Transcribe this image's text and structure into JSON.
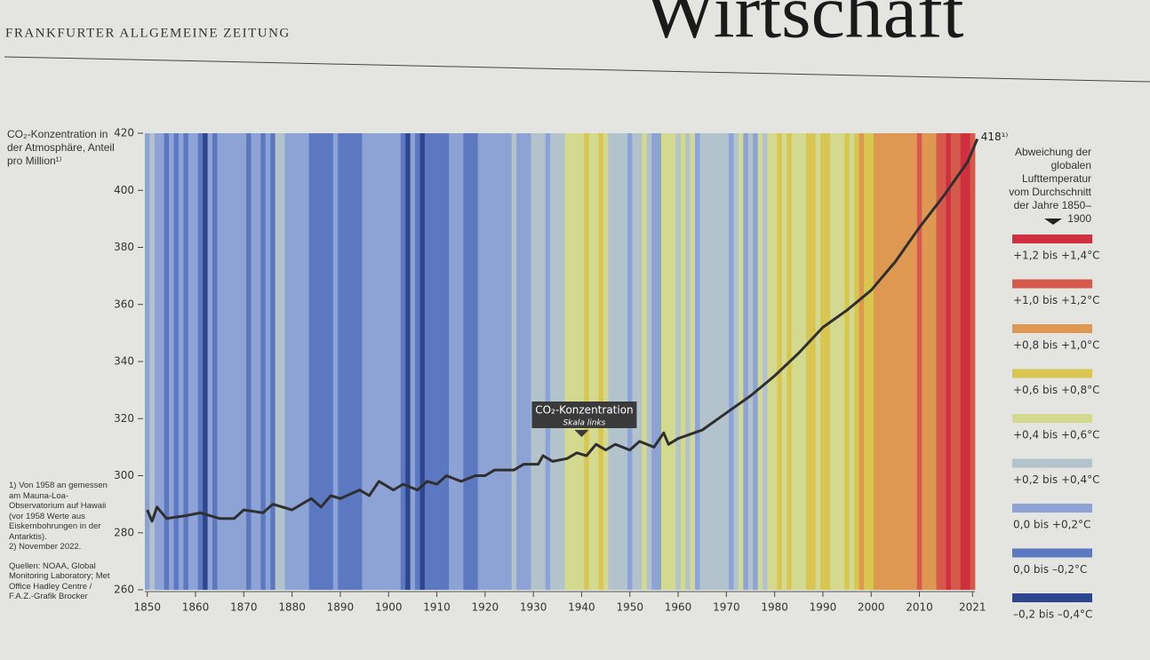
{
  "masthead": {
    "paper": "FRANKFURTER ALLGEMEINE ZEITUNG",
    "section": "Wirtschaft"
  },
  "chart_data": {
    "type": "line",
    "ylabel": "CO₂-Konzentration in der Atmosphäre, Anteil pro Million¹⁾",
    "xlim": [
      1849.5,
      2021.5
    ],
    "ylim": [
      260,
      420
    ],
    "yticks": [
      260,
      280,
      300,
      320,
      340,
      360,
      380,
      400,
      420
    ],
    "xticks": [
      1850,
      1860,
      1870,
      1880,
      1890,
      1900,
      1910,
      1920,
      1930,
      1940,
      1950,
      1960,
      1970,
      1980,
      1990,
      2000,
      2010,
      2021
    ],
    "annotation": {
      "text": "CO₂-Konzentration",
      "subtext": "Skala links",
      "x": 1940
    },
    "x": [
      1850,
      1851,
      1852,
      1854,
      1858,
      1861,
      1865,
      1868,
      1870,
      1874,
      1876,
      1880,
      1884,
      1886,
      1888,
      1890,
      1894,
      1896,
      1898,
      1901,
      1903,
      1906,
      1908,
      1910,
      1912,
      1915,
      1918,
      1920,
      1922,
      1926,
      1928,
      1931,
      1932,
      1934,
      1937,
      1939,
      1941,
      1943,
      1945,
      1947,
      1950,
      1952,
      1955,
      1957,
      1958,
      1960,
      1965,
      1970,
      1975,
      1980,
      1985,
      1990,
      1995,
      2000,
      2005,
      2010,
      2015,
      2020,
      2022
    ],
    "series": [
      {
        "name": "CO₂-Konzentration",
        "color": "#2f2f2f",
        "values": [
          288,
          284,
          289,
          285,
          286,
          287,
          285,
          285,
          288,
          287,
          290,
          288,
          292,
          289,
          293,
          292,
          295,
          293,
          298,
          295,
          297,
          295,
          298,
          297,
          300,
          298,
          300,
          300,
          302,
          302,
          304,
          304,
          307,
          305,
          306,
          308,
          307,
          311,
          309,
          311,
          309,
          312,
          310,
          315,
          311,
          313,
          316,
          322,
          328,
          335,
          343,
          352,
          358,
          365,
          375,
          387,
          398,
          410,
          418
        ],
        "value_labels": [
          null,
          null,
          null,
          null,
          null,
          null,
          null,
          null,
          null,
          null,
          null,
          null,
          null,
          null,
          null,
          null,
          null,
          null,
          null,
          null,
          null,
          null,
          null,
          null,
          null,
          null,
          null,
          null,
          null,
          null,
          null,
          null,
          null,
          null,
          null,
          null,
          null,
          null,
          null,
          null,
          null,
          null,
          null,
          null,
          null,
          null,
          null,
          null,
          null,
          null,
          null,
          null,
          null,
          null,
          null,
          null,
          null,
          null,
          "418¹⁾"
        ]
      }
    ],
    "stripes": {
      "title": "Abweichung der globalen Lufttemperatur vom Durchschnitt der Jahre 1850–1900",
      "years": [
        1850,
        1851,
        1852,
        1853,
        1854,
        1855,
        1856,
        1857,
        1858,
        1859,
        1860,
        1861,
        1862,
        1863,
        1864,
        1865,
        1866,
        1867,
        1868,
        1869,
        1870,
        1871,
        1872,
        1873,
        1874,
        1875,
        1876,
        1877,
        1878,
        1879,
        1880,
        1881,
        1882,
        1883,
        1884,
        1885,
        1886,
        1887,
        1888,
        1889,
        1890,
        1891,
        1892,
        1893,
        1894,
        1895,
        1896,
        1897,
        1898,
        1899,
        1900,
        1901,
        1902,
        1903,
        1904,
        1905,
        1906,
        1907,
        1908,
        1909,
        1910,
        1911,
        1912,
        1913,
        1914,
        1915,
        1916,
        1917,
        1918,
        1919,
        1920,
        1921,
        1922,
        1923,
        1924,
        1925,
        1926,
        1927,
        1928,
        1929,
        1930,
        1931,
        1932,
        1933,
        1934,
        1935,
        1936,
        1937,
        1938,
        1939,
        1940,
        1941,
        1942,
        1943,
        1944,
        1945,
        1946,
        1947,
        1948,
        1949,
        1950,
        1951,
        1952,
        1953,
        1954,
        1955,
        1956,
        1957,
        1958,
        1959,
        1960,
        1961,
        1962,
        1963,
        1964,
        1965,
        1966,
        1967,
        1968,
        1969,
        1970,
        1971,
        1972,
        1973,
        1974,
        1975,
        1976,
        1977,
        1978,
        1979,
        1980,
        1981,
        1982,
        1983,
        1984,
        1985,
        1986,
        1987,
        1988,
        1989,
        1990,
        1991,
        1992,
        1993,
        1994,
        1995,
        1996,
        1997,
        1998,
        1999,
        2000,
        2001,
        2002,
        2003,
        2004,
        2005,
        2006,
        2007,
        2008,
        2009,
        2010,
        2011,
        2012,
        2013,
        2014,
        2015,
        2016,
        2017,
        2018,
        2019,
        2020,
        2021
      ],
      "values": [
        0.1,
        0.3,
        0.1,
        0.1,
        -0.1,
        0.1,
        -0.1,
        0.1,
        -0.1,
        0.1,
        0.1,
        -0.1,
        -0.3,
        0.1,
        -0.1,
        0.1,
        0.1,
        0.1,
        0.1,
        0.1,
        0.1,
        -0.1,
        0.1,
        0.1,
        -0.1,
        0.1,
        -0.1,
        0.3,
        0.3,
        0.1,
        0.1,
        0.1,
        0.1,
        0.1,
        -0.1,
        -0.1,
        -0.1,
        -0.1,
        -0.1,
        0.1,
        -0.1,
        -0.1,
        -0.1,
        -0.1,
        -0.1,
        0.1,
        0.1,
        0.1,
        0.1,
        0.1,
        0.1,
        0.1,
        0.1,
        -0.1,
        -0.3,
        0.1,
        -0.1,
        -0.3,
        -0.1,
        -0.1,
        -0.1,
        -0.1,
        -0.1,
        0.1,
        0.1,
        0.1,
        -0.1,
        -0.1,
        -0.1,
        0.1,
        0.1,
        0.1,
        0.1,
        0.1,
        0.1,
        0.1,
        0.3,
        0.1,
        0.1,
        0.1,
        0.3,
        0.3,
        0.3,
        0.1,
        0.3,
        0.3,
        0.3,
        0.5,
        0.5,
        0.5,
        0.5,
        0.7,
        0.5,
        0.5,
        0.7,
        0.5,
        0.3,
        0.3,
        0.3,
        0.3,
        0.1,
        0.3,
        0.3,
        0.5,
        0.3,
        0.1,
        0.1,
        0.5,
        0.5,
        0.5,
        0.3,
        0.5,
        0.3,
        0.5,
        0.1,
        0.3,
        0.3,
        0.3,
        0.3,
        0.3,
        0.3,
        0.1,
        0.3,
        0.5,
        0.1,
        0.3,
        0.1,
        0.5,
        0.3,
        0.5,
        0.5,
        0.7,
        0.5,
        0.7,
        0.5,
        0.5,
        0.5,
        0.7,
        0.7,
        0.5,
        0.7,
        0.7,
        0.5,
        0.5,
        0.5,
        0.7,
        0.5,
        0.7,
        0.9,
        0.7,
        0.7,
        0.9,
        0.9,
        0.9,
        0.9,
        0.9,
        0.9,
        0.9,
        0.9,
        0.9,
        1.1,
        0.9,
        0.9,
        0.9,
        1.1,
        1.1,
        1.3,
        1.1,
        1.1,
        1.3,
        1.3,
        1.1
      ],
      "legend": [
        {
          "label": "+1,2 bis +1,4°C",
          "range": [
            1.2,
            1.4
          ],
          "color": "#cf2f3f"
        },
        {
          "label": "+1,0 bis +1,2°C",
          "range": [
            1.0,
            1.2
          ],
          "color": "#d65a4c"
        },
        {
          "label": "+0,8 bis +1,0°C",
          "range": [
            0.8,
            1.0
          ],
          "color": "#df9852"
        },
        {
          "label": "+0,6 bis +0,8°C",
          "range": [
            0.6,
            0.8
          ],
          "color": "#d9c650"
        },
        {
          "label": "+0,4 bis +0,6°C",
          "range": [
            0.4,
            0.6
          ],
          "color": "#d3d98f"
        },
        {
          "label": "+0,2 bis +0,4°C",
          "range": [
            0.2,
            0.4
          ],
          "color": "#b2c3cc"
        },
        {
          "label": "0,0 bis +0,2°C",
          "range": [
            0.0,
            0.2
          ],
          "color": "#8da3d6"
        },
        {
          "label": "0,0 bis –0,2°C",
          "range": [
            -0.2,
            0.0
          ],
          "color": "#5c78c0"
        },
        {
          "label": "–0,2 bis –0,4°C",
          "range": [
            -0.4,
            -0.2
          ],
          "color": "#2e4690"
        }
      ]
    },
    "footnotes": [
      "1) Von 1958 an gemessen am Mauna-Loa-Observatorium auf Hawaii (vor 1958 Werte aus Eiskernbohrungen in der Antarktis).",
      "2) November 2022."
    ],
    "source": "Quellen: NOAA, Global Monitoring Laboratory; Met Office Hadley Centre / F.A.Z.-Grafik Brocker"
  }
}
